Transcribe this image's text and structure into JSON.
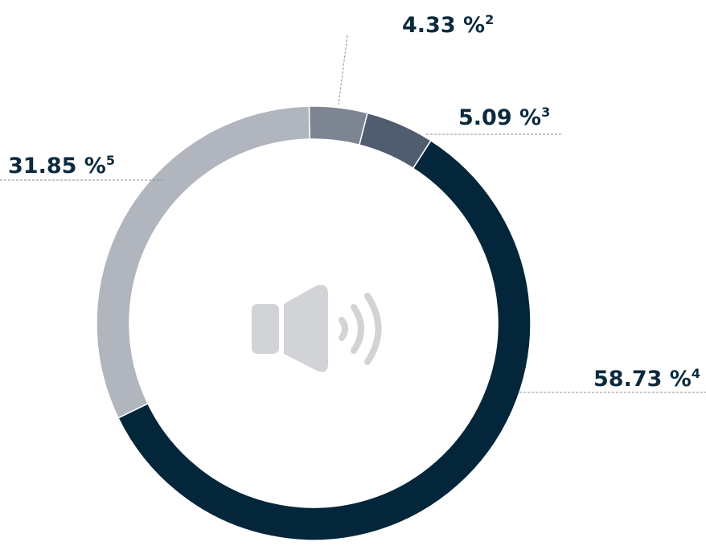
{
  "chart_data": {
    "type": "donut",
    "values": [
      4.33,
      5.09,
      58.73,
      31.85
    ],
    "value_labels": [
      "4.33 %",
      "5.09 %",
      "58.73 %",
      "31.85 %"
    ],
    "footnote_refs": [
      "2",
      "3",
      "4",
      "5"
    ],
    "colors": [
      "#7d8593",
      "#4f5d6e",
      "#04263a",
      "#b1b5be"
    ]
  }
}
